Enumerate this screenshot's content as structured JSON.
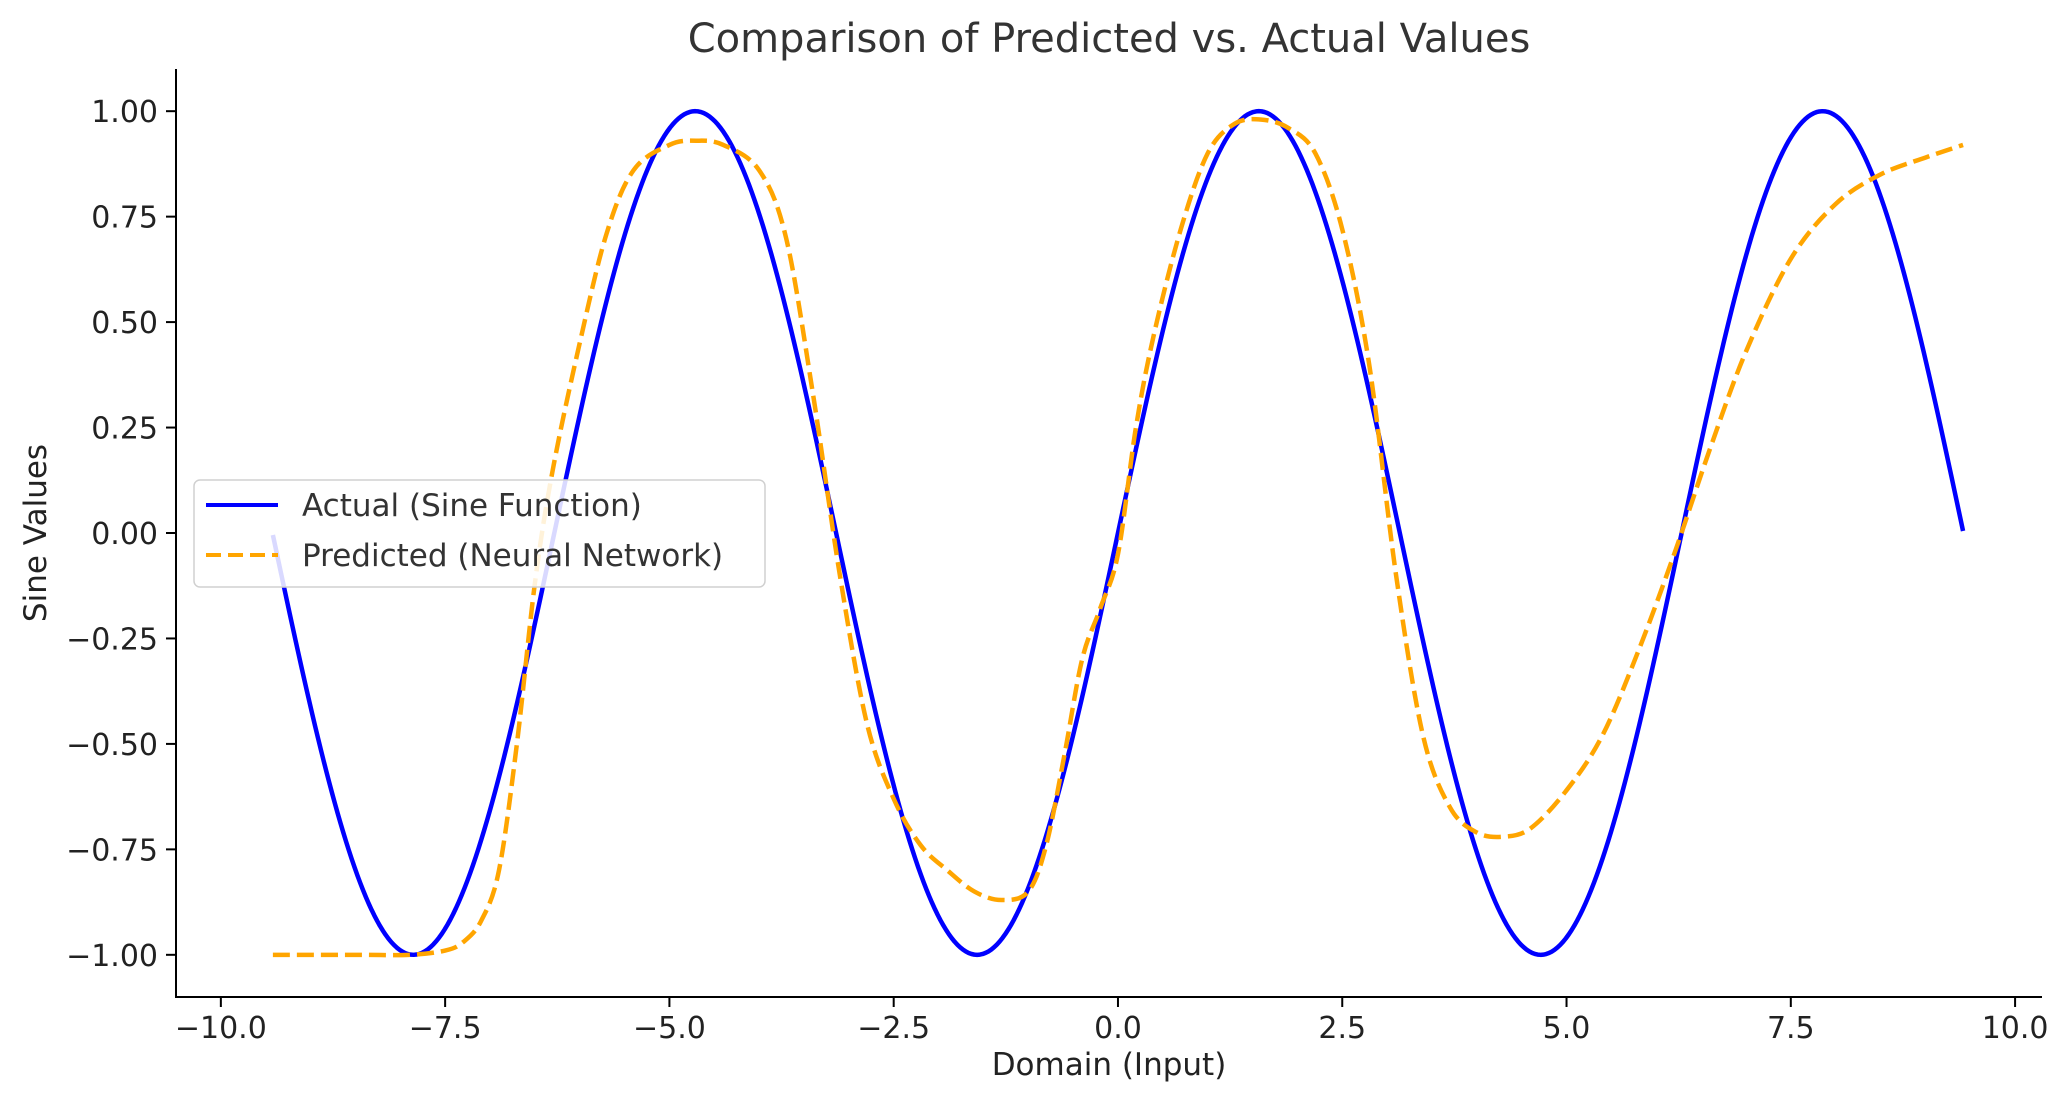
{
  "chart_data": {
    "type": "line",
    "title": "Comparison of Predicted vs. Actual Values",
    "xlabel": "Domain (Input)",
    "ylabel": "Sine Values",
    "xlim": [
      -10.5,
      10.3
    ],
    "ylim": [
      -1.1,
      1.1
    ],
    "xticks": [
      -10.0,
      -7.5,
      -5.0,
      -2.5,
      0.0,
      2.5,
      5.0,
      7.5,
      10.0
    ],
    "xtick_labels": [
      "−10.0",
      "−7.5",
      "−5.0",
      "−2.5",
      "0.0",
      "2.5",
      "5.0",
      "7.5",
      "10.0"
    ],
    "yticks": [
      -1.0,
      -0.75,
      -0.5,
      -0.25,
      0.0,
      0.25,
      0.5,
      0.75,
      1.0
    ],
    "ytick_labels": [
      "−1.00",
      "−0.75",
      "−0.50",
      "−0.25",
      "0.00",
      "0.25",
      "0.50",
      "0.75",
      "1.00"
    ],
    "grid": false,
    "legend_position": "center-left",
    "series": [
      {
        "name": "Actual (Sine Function)",
        "color": "#0000ff",
        "style": "solid",
        "function": "sin(x)",
        "x_range": [
          -9.42,
          9.42
        ]
      },
      {
        "name": "Predicted (Neural Network)",
        "color": "#ffa500",
        "style": "dashed",
        "points": [
          [
            -9.42,
            -1.0
          ],
          [
            -8.5,
            -1.0
          ],
          [
            -7.9,
            -1.0
          ],
          [
            -7.5,
            -0.99
          ],
          [
            -7.3,
            -0.97
          ],
          [
            -7.1,
            -0.92
          ],
          [
            -6.9,
            -0.8
          ],
          [
            -6.7,
            -0.5
          ],
          [
            -6.5,
            -0.12
          ],
          [
            -6.3,
            0.15
          ],
          [
            -6.0,
            0.45
          ],
          [
            -5.7,
            0.71
          ],
          [
            -5.4,
            0.86
          ],
          [
            -5.0,
            0.92
          ],
          [
            -4.7,
            0.93
          ],
          [
            -4.4,
            0.92
          ],
          [
            -4.0,
            0.86
          ],
          [
            -3.7,
            0.7
          ],
          [
            -3.4,
            0.33
          ],
          [
            -3.1,
            -0.1
          ],
          [
            -2.8,
            -0.45
          ],
          [
            -2.5,
            -0.63
          ],
          [
            -2.2,
            -0.74
          ],
          [
            -1.9,
            -0.8
          ],
          [
            -1.6,
            -0.85
          ],
          [
            -1.3,
            -0.87
          ],
          [
            -1.0,
            -0.85
          ],
          [
            -0.8,
            -0.74
          ],
          [
            -0.6,
            -0.53
          ],
          [
            -0.4,
            -0.3
          ],
          [
            -0.2,
            -0.18
          ],
          [
            0.0,
            -0.05
          ],
          [
            0.2,
            0.25
          ],
          [
            0.4,
            0.47
          ],
          [
            0.7,
            0.72
          ],
          [
            1.0,
            0.9
          ],
          [
            1.3,
            0.97
          ],
          [
            1.6,
            0.98
          ],
          [
            1.9,
            0.96
          ],
          [
            2.2,
            0.9
          ],
          [
            2.5,
            0.72
          ],
          [
            2.8,
            0.4
          ],
          [
            3.1,
            -0.1
          ],
          [
            3.4,
            -0.48
          ],
          [
            3.7,
            -0.65
          ],
          [
            4.0,
            -0.71
          ],
          [
            4.3,
            -0.72
          ],
          [
            4.6,
            -0.7
          ],
          [
            5.0,
            -0.61
          ],
          [
            5.4,
            -0.48
          ],
          [
            5.8,
            -0.28
          ],
          [
            6.2,
            -0.05
          ],
          [
            6.6,
            0.2
          ],
          [
            7.0,
            0.43
          ],
          [
            7.5,
            0.65
          ],
          [
            8.0,
            0.78
          ],
          [
            8.5,
            0.85
          ],
          [
            9.0,
            0.89
          ],
          [
            9.42,
            0.92
          ]
        ]
      }
    ]
  }
}
